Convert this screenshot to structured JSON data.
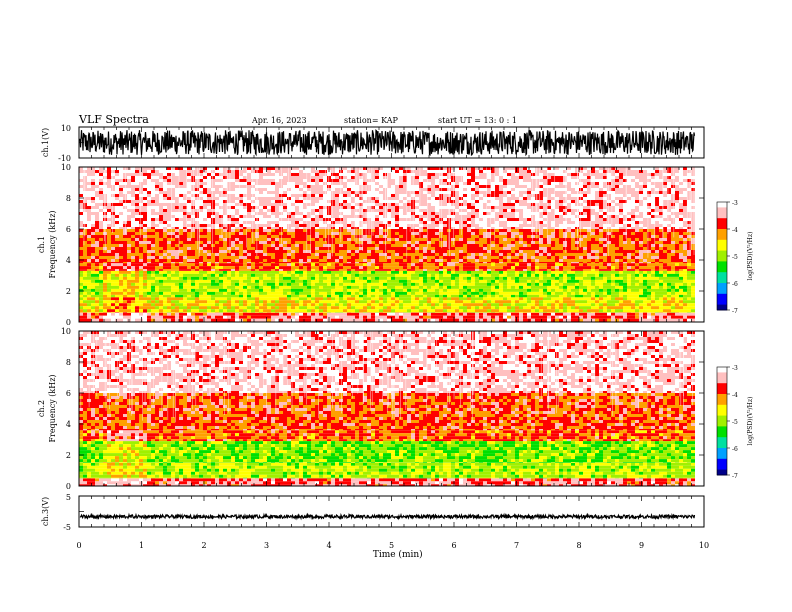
{
  "header": {
    "title": "VLF Spectra",
    "date": "Apr. 16, 2023",
    "station": "station= KAP",
    "start": "start  UT =   13: 0  : 1"
  },
  "chart_data": [
    {
      "type": "line",
      "panel": "ch1-waveform",
      "ylabel": "ch.1(V)",
      "ylim": [
        -10,
        10
      ],
      "yticks": [
        "10",
        "-10"
      ],
      "xlim": [
        0,
        10
      ],
      "description_values": {
        "amplitude_range": [
          -8,
          8
        ]
      }
    },
    {
      "type": "heatmap",
      "panel": "ch1-spectrogram",
      "ylabel_line1": "ch.1",
      "ylabel_line2": "Frequency  (kHz)",
      "ylim": [
        0,
        10
      ],
      "yticks": [
        "0",
        "2",
        "4",
        "6",
        "8",
        "10"
      ],
      "xlim": [
        0,
        9.85
      ],
      "bands": [
        {
          "from": 0.0,
          "to": 0.6,
          "level": -3.6
        },
        {
          "from": 0.6,
          "to": 1.6,
          "level": -4.6
        },
        {
          "from": 1.6,
          "to": 3.3,
          "level": -4.9
        },
        {
          "from": 3.3,
          "to": 3.8,
          "level": -4.0
        },
        {
          "from": 3.8,
          "to": 6.0,
          "level": -3.9
        },
        {
          "from": 6.0,
          "to": 10.0,
          "level": -3.3
        }
      ],
      "colorbar": {
        "label": "log(PSD)(V²/Hz)",
        "range": [
          -7,
          -3
        ],
        "ticks": [
          "-3",
          "-4",
          "-5",
          "-6",
          "-7"
        ]
      }
    },
    {
      "type": "heatmap",
      "panel": "ch2-spectrogram",
      "ylabel_line1": "ch.2",
      "ylabel_line2": "Frequency  (kHz)",
      "ylim": [
        0,
        10
      ],
      "yticks": [
        "0",
        "2",
        "4",
        "6",
        "8",
        "10"
      ],
      "xlim": [
        0,
        9.85
      ],
      "bands": [
        {
          "from": 0.0,
          "to": 0.5,
          "level": -3.6
        },
        {
          "from": 0.5,
          "to": 1.5,
          "level": -4.9
        },
        {
          "from": 1.5,
          "to": 2.9,
          "level": -5.1
        },
        {
          "from": 2.9,
          "to": 3.6,
          "level": -4.0
        },
        {
          "from": 3.6,
          "to": 6.0,
          "level": -3.9
        },
        {
          "from": 6.0,
          "to": 10.0,
          "level": -3.3
        }
      ],
      "colorbar": {
        "label": "log(PSD)(V²/Hz)",
        "range": [
          -7,
          -3
        ],
        "ticks": [
          "-3",
          "-4",
          "-5",
          "-6",
          "-7"
        ]
      }
    },
    {
      "type": "line",
      "panel": "ch3-waveform",
      "ylabel": "ch.3(V)",
      "ylim": [
        -5,
        5
      ],
      "yticks": [
        "5",
        "-5"
      ],
      "xlim": [
        0,
        10
      ],
      "description_values": {
        "amplitude_range": [
          -2.2,
          -1.1
        ]
      }
    }
  ],
  "x_axis": {
    "label": "Time  (min)",
    "ticks": [
      "0",
      "1",
      "2",
      "3",
      "4",
      "5",
      "6",
      "7",
      "8",
      "9",
      "10"
    ]
  },
  "colors": {
    "trace": "#000000",
    "palette": [
      "#00008a",
      "#0000ff",
      "#00a0ff",
      "#00e0a0",
      "#00e000",
      "#a0f000",
      "#ffff00",
      "#ffa000",
      "#ff0000",
      "#ffc0c0",
      "#ffffff"
    ]
  }
}
